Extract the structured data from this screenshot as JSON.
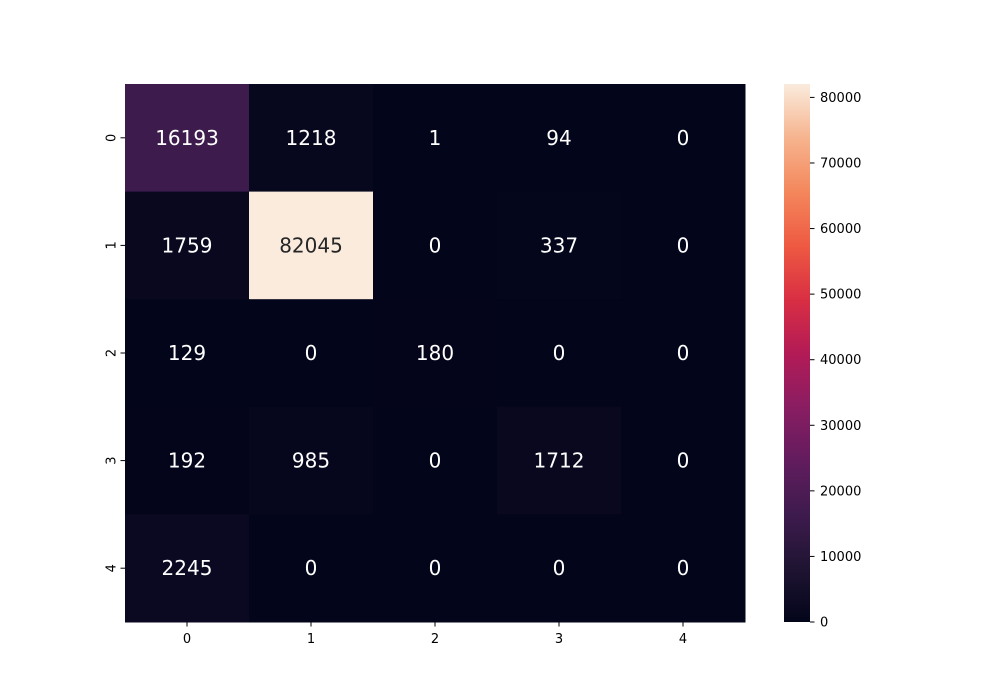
{
  "chart_data": {
    "type": "heatmap",
    "title": "",
    "xlabel": "",
    "ylabel": "",
    "x_categories": [
      "0",
      "1",
      "2",
      "3",
      "4"
    ],
    "y_categories": [
      "0",
      "1",
      "2",
      "3",
      "4"
    ],
    "values": [
      [
        16193,
        1218,
        1,
        94,
        0
      ],
      [
        1759,
        82045,
        0,
        337,
        0
      ],
      [
        129,
        0,
        180,
        0,
        0
      ],
      [
        192,
        985,
        0,
        1712,
        0
      ],
      [
        2245,
        0,
        0,
        0,
        0
      ]
    ],
    "colormap": "rocket",
    "colorbar": {
      "min": 0,
      "max": 82045,
      "ticks": [
        0,
        10000,
        20000,
        30000,
        40000,
        50000,
        60000,
        70000,
        80000
      ],
      "tick_labels": [
        "0",
        "10000",
        "20000",
        "30000",
        "40000",
        "50000",
        "60000",
        "70000",
        "80000"
      ]
    },
    "annotation_colors": {
      "dark_cell": "#ffffff",
      "light_cell": "#262626"
    }
  }
}
